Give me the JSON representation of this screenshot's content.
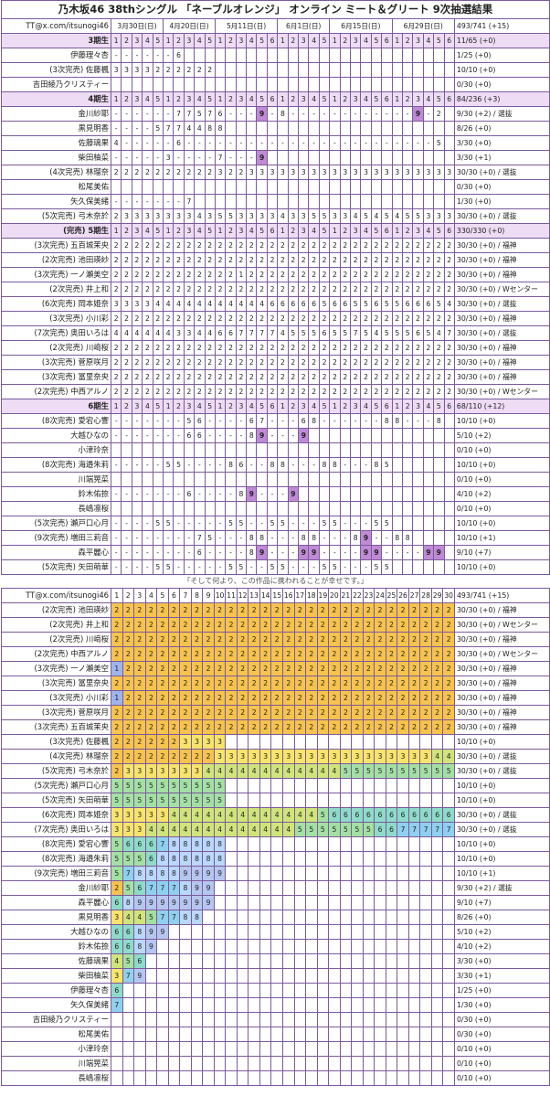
{
  "title": "乃木坂46 38thシングル 「ネーブルオレンジ」 オンライン ミート＆グリート 9次抽選結果",
  "handle": "TT@x.com/itsunogi46",
  "total": "493/741 (+15)",
  "footer_note": "「そして何より、この作品に携われることが幸せです。」",
  "dates": [
    "3月30日(日)",
    "4月20日(日)",
    "5月11日(日)",
    "6月1日(日)",
    "6月15日(日)",
    "6月29日(日)"
  ],
  "colors": {
    "border": "#7b5a9c",
    "group_bg": "#eedcf4",
    "highlight": "#c08ad6",
    "c1": "#9fb4ee",
    "c2": "#f6c34c",
    "c3": "#f7e46b",
    "c4": "#cfe57a",
    "c5": "#a3e0a3",
    "c6": "#8edbc9",
    "c7": "#8fd0ee",
    "c8": "#b9d8fb",
    "c9": "#b6c7ef"
  },
  "groups": [
    {
      "label": "3期生",
      "summary": "11/65 (+0)",
      "rows": [
        {
          "name": "伊藤理々杏",
          "summary": "1/25 (+0)",
          "cells": "------6"
        },
        {
          "name": "(3次完売) 佐藤楓",
          "summary": "10/10 (+0)",
          "cells": "3333222222"
        },
        {
          "name": "吉田綾乃クリスティー",
          "summary": "0/30 (+0)",
          "cells": ""
        }
      ]
    },
    {
      "label": "4期生",
      "summary": "84/236 (+3)",
      "rows": [
        {
          "name": "金川紗耶",
          "summary": "9/30 (+2) / 選抜",
          "cells": "------77576---9-8------------9-2"
        },
        {
          "name": "黒見明香",
          "summary": "8/26 (+0)",
          "cells": "----5774488"
        },
        {
          "name": "佐藤璃果",
          "summary": "3/30 (+0)",
          "cells": "4-----6------------------------5"
        },
        {
          "name": "柴田柚菜",
          "summary": "3/30 (+1)",
          "cells": "-----3----7---9"
        },
        {
          "name": "(4次完売) 林瑠奈",
          "summary": "30/30 (+0) / 選抜",
          "cells": "222222222232233333333333333333333"
        },
        {
          "name": "松尾美佑",
          "summary": "0/30 (+0)",
          "cells": ""
        },
        {
          "name": "矢久保美緒",
          "summary": "1/30 (+0)",
          "cells": "-------7"
        },
        {
          "name": "(5次完売) 弓木奈於",
          "summary": "30/30 (+0) / 選抜",
          "cells": "23333333435533334335533454545533322"
        }
      ]
    },
    {
      "label": "(完売) 5期生",
      "summary": "330/330 (+0)",
      "rows": [
        {
          "name": "(3次完売) 五百城茉央",
          "summary": "30/30 (+0) / 福神",
          "cells": "222222222222222222222222222222222"
        },
        {
          "name": "(2次完売) 池田瑛紗",
          "summary": "30/30 (+0) / 福神",
          "cells": "222222222222222222222222222222222"
        },
        {
          "name": "(3次完売) 一ノ瀬美空",
          "summary": "30/30 (+0) / 福神",
          "cells": "222222222222122222222222222222222"
        },
        {
          "name": "(2次完売) 井上和",
          "summary": "30/30 (+0) / Wセンター",
          "cells": "222222222222222222222222222222222"
        },
        {
          "name": "(6次完売) 岡本姫奈",
          "summary": "30/30 (+0) / 選抜",
          "cells": "333344444444444666665665565566654"
        },
        {
          "name": "(3次完売) 小川彩",
          "summary": "30/30 (+0) / 福神",
          "cells": "222222222222222222222222222222222"
        },
        {
          "name": "(7次完売) 奥田いろは",
          "summary": "30/30 (+0) / 選抜",
          "cells": "444444334466777745556557545556547"
        },
        {
          "name": "(2次完売) 川﨑桜",
          "summary": "30/30 (+0) / 福神",
          "cells": "222222222222222222222222222222222"
        },
        {
          "name": "(3次完売) 菅原咲月",
          "summary": "30/30 (+0) / 福神",
          "cells": "222222222222222222222222222222222"
        },
        {
          "name": "(3次完売) 冨里奈央",
          "summary": "30/30 (+0) / 福神",
          "cells": "222222222222222222222222222222222"
        },
        {
          "name": "(2次完売) 中西アルノ",
          "summary": "30/30 (+0) / Wセンター",
          "cells": "222222222222222222222222222222222"
        }
      ]
    },
    {
      "label": "6期生",
      "summary": "68/110 (+12)",
      "rows": [
        {
          "name": "(8次完売) 愛宕心響",
          "summary": "10/10 (+0)",
          "cells": "-------56----67---68------88---8"
        },
        {
          "name": "大越ひなの",
          "summary": "5/10 (+2)",
          "cells": "-------66----89---9"
        },
        {
          "name": "小津玲奈",
          "summary": "0/10 (+0)",
          "cells": ""
        },
        {
          "name": "(8次完売) 海邉朱莉",
          "summary": "10/10 (+0)",
          "cells": "-----55----86--88---88---85"
        },
        {
          "name": "川端晃菜",
          "summary": "0/10 (+0)",
          "cells": ""
        },
        {
          "name": "鈴木佑捺",
          "summary": "4/10 (+2)",
          "cells": "-------6----89---9"
        },
        {
          "name": "長嶋凛桜",
          "summary": "0/10 (+0)",
          "cells": ""
        },
        {
          "name": "(5次完売) 瀬戸口心月",
          "summary": "10/10 (+0)",
          "cells": "----55-----55--55---55---55"
        },
        {
          "name": "(9次完売) 増田三莉音",
          "summary": "10/10 (+1)",
          "cells": "--------75---88---88---89--88"
        },
        {
          "name": "森平麗心",
          "summary": "9/10 (+7)",
          "cells": "--------6----89---99----99----99"
        },
        {
          "name": "(5次完売) 矢田萌華",
          "summary": "10/10 (+0)",
          "cells": "----55-----55--55---55---55"
        }
      ]
    }
  ],
  "grid_rows": [
    {
      "name": "(2次完売) 池田瑛紗",
      "summary": "30/30 (+0) / 福神",
      "cells": "222222222222222222222222222222"
    },
    {
      "name": "(2次完売) 井上和",
      "summary": "30/30 (+0) / Wセンター",
      "cells": "222222222222222222222222222222"
    },
    {
      "name": "(2次完売) 川﨑桜",
      "summary": "30/30 (+0) / 福神",
      "cells": "222222222222222222222222222222"
    },
    {
      "name": "(2次完売) 中西アルノ",
      "summary": "30/30 (+0) / Wセンター",
      "cells": "222222222222222222222222222222"
    },
    {
      "name": "(3次完売) 一ノ瀬美空",
      "summary": "30/30 (+0) / 福神",
      "cells": "122222222222222222222222222222"
    },
    {
      "name": "(3次完売) 冨里奈央",
      "summary": "30/30 (+0) / 福神",
      "cells": "222222222222222222222222222222"
    },
    {
      "name": "(3次完売) 小川彩",
      "summary": "30/30 (+0) / 福神",
      "cells": "122222222222222222222222222222"
    },
    {
      "name": "(3次完売) 菅原咲月",
      "summary": "30/30 (+0) / 福神",
      "cells": "222222222222222222222222222222"
    },
    {
      "name": "(3次完売) 五百城茉央",
      "summary": "30/30 (+0) / 福神",
      "cells": "222222222222222222222222222222"
    },
    {
      "name": "(3次完売) 佐藤楓",
      "summary": "10/10 (+0)",
      "cells": "2222223333"
    },
    {
      "name": "(4次完売) 林瑠奈",
      "summary": "30/30 (+0) / 選抜",
      "cells": "222222222333333333333333333344"
    },
    {
      "name": "(5次完売) 弓木奈於",
      "summary": "30/30 (+0) / 選抜",
      "cells": "233333334444444444445555555555"
    },
    {
      "name": "(5次完売) 瀬戸口心月",
      "summary": "10/10 (+0)",
      "cells": "5555555555"
    },
    {
      "name": "(5次完売) 矢田萌華",
      "summary": "10/10 (+0)",
      "cells": "5555555555"
    },
    {
      "name": "(6次完売) 岡本姫奈",
      "summary": "30/30 (+0) / 選抜",
      "cells": "333334444444444444566666666666"
    },
    {
      "name": "(7次完売) 奥田いろは",
      "summary": "30/30 (+0) / 選抜",
      "cells": "333444444444444455555556677777"
    },
    {
      "name": "(8次完売) 愛宕心響",
      "summary": "10/10 (+0)",
      "cells": "5666788888"
    },
    {
      "name": "(8次完売) 海邉朱莉",
      "summary": "10/10 (+0)",
      "cells": "5556888888"
    },
    {
      "name": "(9次完売) 増田三莉音",
      "summary": "10/10 (+1)",
      "cells": "5788889999"
    },
    {
      "name": "金川紗耶",
      "summary": "9/30 (+2) / 選抜",
      "cells": "256777899"
    },
    {
      "name": "森平麗心",
      "summary": "9/10 (+7)",
      "cells": "689999999"
    },
    {
      "name": "黒見明香",
      "summary": "8/26 (+0)",
      "cells": "34457788"
    },
    {
      "name": "大越ひなの",
      "summary": "5/10 (+2)",
      "cells": "66899"
    },
    {
      "name": "鈴木佑捺",
      "summary": "4/10 (+2)",
      "cells": "6689"
    },
    {
      "name": "佐藤璃果",
      "summary": "3/30 (+0)",
      "cells": "456"
    },
    {
      "name": "柴田柚菜",
      "summary": "3/30 (+1)",
      "cells": "379"
    },
    {
      "name": "伊藤理々杏",
      "summary": "1/25 (+0)",
      "cells": "6"
    },
    {
      "name": "矢久保美緒",
      "summary": "1/30 (+0)",
      "cells": "7"
    },
    {
      "name": "吉田綾乃クリスティー",
      "summary": "0/30 (+0)",
      "cells": ""
    },
    {
      "name": "松尾美佑",
      "summary": "0/30 (+0)",
      "cells": ""
    },
    {
      "name": "小津玲奈",
      "summary": "0/10 (+0)",
      "cells": ""
    },
    {
      "name": "川端晃菜",
      "summary": "0/10 (+0)",
      "cells": ""
    },
    {
      "name": "長嶋凛桜",
      "summary": "0/10 (+0)",
      "cells": ""
    }
  ]
}
